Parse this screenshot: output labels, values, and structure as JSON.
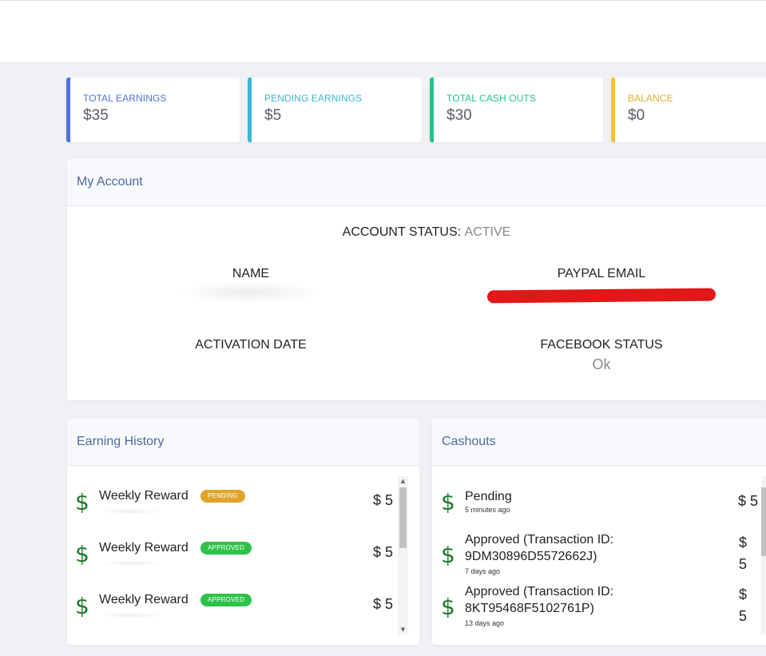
{
  "stats": [
    {
      "label": "TOTAL EARNINGS",
      "value": "$35",
      "color": "#4e73df"
    },
    {
      "label": "PENDING EARNINGS",
      "value": "$5",
      "color": "#36b9cc"
    },
    {
      "label": "TOTAL CASH OUTS",
      "value": "$30",
      "color": "#1cc88a"
    },
    {
      "label": "BALANCE",
      "value": "$0",
      "color": "#f6c23e"
    }
  ],
  "account": {
    "title": "My Account",
    "status_label": "ACCOUNT STATUS:",
    "status_value": "ACTIVE",
    "name_label": "NAME",
    "paypal_label": "PAYPAL EMAIL",
    "activation_label": "ACTIVATION DATE",
    "facebook_label": "FACEBOOK STATUS",
    "facebook_value": "Ok"
  },
  "earning_history": {
    "title": "Earning History",
    "items": [
      {
        "title": "Weekly Reward",
        "badge": "PENDING",
        "amount": "$ 5"
      },
      {
        "title": "Weekly Reward",
        "badge": "APPROVED",
        "amount": "$ 5"
      },
      {
        "title": "Weekly Reward",
        "badge": "APPROVED",
        "amount": "$ 5"
      }
    ]
  },
  "cashouts": {
    "title": "Cashouts",
    "items": [
      {
        "line1": "Pending",
        "line2": "",
        "time": "5 minutes ago",
        "amount": "$ 5"
      },
      {
        "line1": "Approved (Transaction ID:",
        "line2": "9DM30896D5572662J)",
        "time": "7 days ago",
        "amount_top": "$",
        "amount_bottom": "5"
      },
      {
        "line1": "Approved (Transaction ID:",
        "line2": "8KT95468F5102761P)",
        "time": "13 days ago",
        "amount_top": "$",
        "amount_bottom": "5"
      }
    ]
  },
  "icons": {
    "dollar": "dollar-sign-icon",
    "up": "scroll-up-arrow-icon",
    "down": "scroll-down-arrow-icon"
  }
}
